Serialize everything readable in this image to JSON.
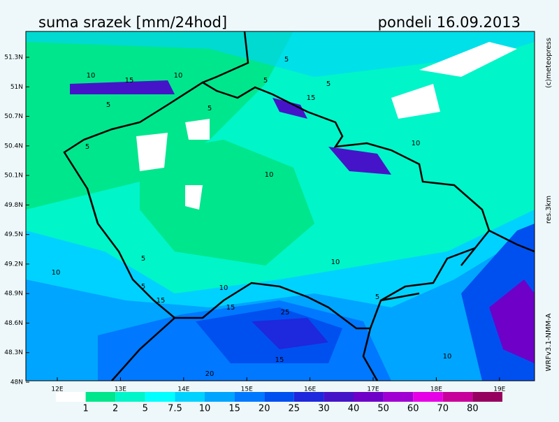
{
  "header": {
    "title": "suma srazek [mm/24hod]",
    "date": "pondeli 16.09.2013"
  },
  "axes": {
    "lat_labels": [
      "51.3N",
      "51N",
      "50.7N",
      "50.4N",
      "50.1N",
      "49.8N",
      "49.5N",
      "49.2N",
      "48.9N",
      "48.6N",
      "48.3N",
      "48N"
    ],
    "lon_labels": [
      "12E",
      "13E",
      "14E",
      "15E",
      "16E",
      "17E",
      "18E",
      "19E"
    ]
  },
  "map": {
    "contour_labels": [
      "5",
      "10",
      "15",
      "5",
      "10",
      "5",
      "15",
      "5",
      "10",
      "5",
      "10",
      "5",
      "10",
      "5",
      "15",
      "10",
      "15",
      "5",
      "20",
      "25",
      "15",
      "10",
      "5",
      "10"
    ]
  },
  "side": {
    "credit": "(c)meteopress",
    "resolution": "res.3km",
    "model": "WRFv3.1-NMM-A"
  },
  "colorbar": {
    "colors": [
      "#ffffff",
      "#00e68c",
      "#00f5c8",
      "#00ffff",
      "#00d2ff",
      "#00a5ff",
      "#0078ff",
      "#0050f0",
      "#1e28dc",
      "#4614c8",
      "#6e00c8",
      "#a000d2",
      "#e600e6",
      "#c8009b",
      "#96005f"
    ],
    "labels": [
      "1",
      "2",
      "5",
      "7.5",
      "10",
      "15",
      "20",
      "25",
      "30",
      "40",
      "50",
      "60",
      "70",
      "80"
    ]
  }
}
